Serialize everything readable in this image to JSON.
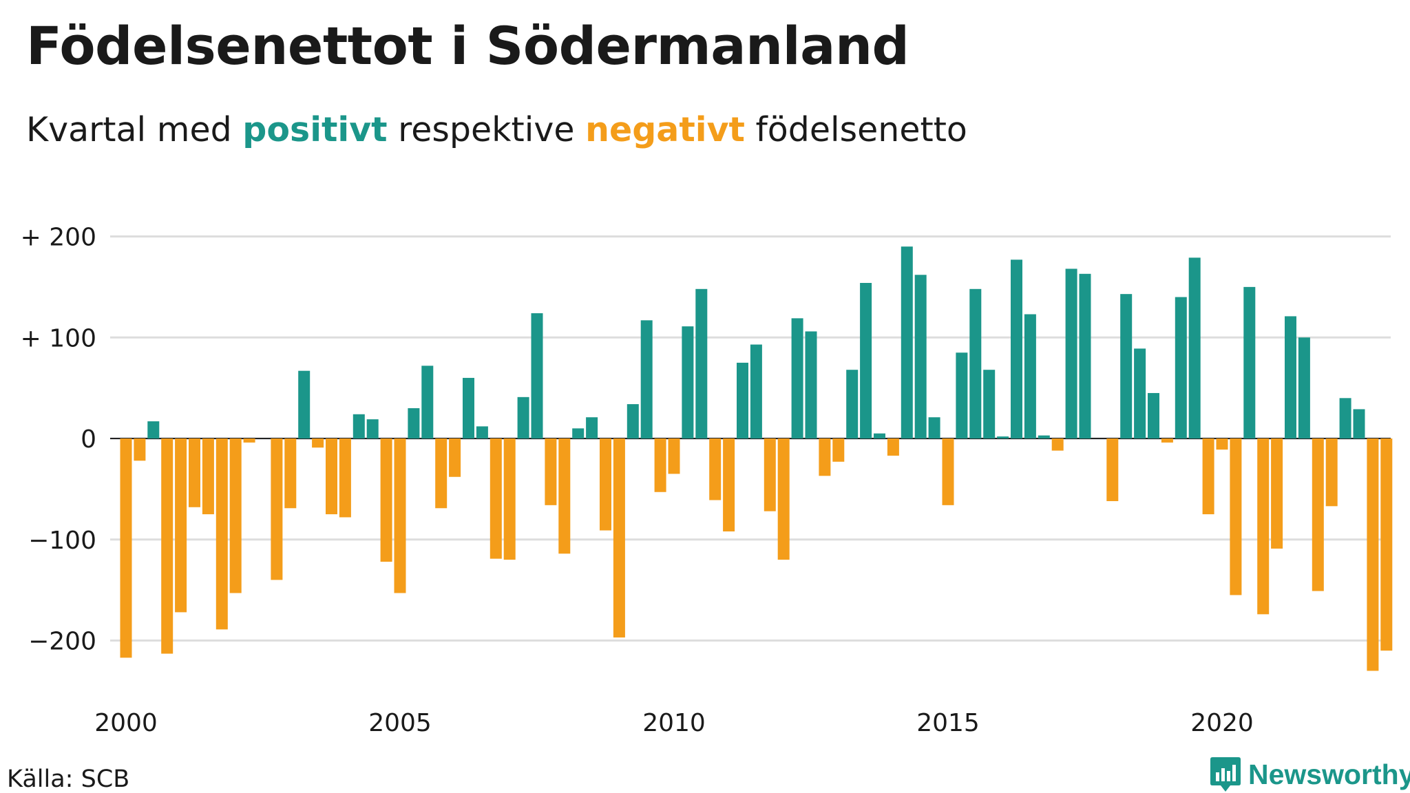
{
  "header": {
    "title": "Födelsenettot i Södermanland",
    "subtitle_prefix": "Kvartal med",
    "subtitle_positive": "positivt",
    "subtitle_middle": "respektive",
    "subtitle_negative": "negativt",
    "subtitle_suffix": "födelsenetto"
  },
  "footer": {
    "source": "Källa: SCB",
    "brand": "Newsworthy"
  },
  "colors": {
    "positive": "#1b968a",
    "negative": "#f49d1a",
    "grid": "#dddddd",
    "text": "#1a1a1a"
  },
  "chart_data": {
    "type": "bar",
    "title": "Födelsenettot i Södermanland",
    "subtitle": "Kvartal med positivt respektive negativt födelsenetto",
    "xlabel": "",
    "ylabel": "",
    "ylim": [
      -235,
      205
    ],
    "y_ticks": [
      {
        "value": 200,
        "label": "+ 200"
      },
      {
        "value": 100,
        "label": "+ 100"
      },
      {
        "value": 0,
        "label": "0"
      },
      {
        "value": -100,
        "label": "−100"
      },
      {
        "value": -200,
        "label": "−200"
      }
    ],
    "x_ticks": [
      {
        "value": 2000,
        "label": "2000"
      },
      {
        "value": 2005,
        "label": "2005"
      },
      {
        "value": 2010,
        "label": "2010"
      },
      {
        "value": 2015,
        "label": "2015"
      },
      {
        "value": 2020,
        "label": "2020"
      }
    ],
    "start_year": 2000,
    "grid": true,
    "values": [
      -217,
      -22,
      17,
      -213,
      -172,
      -68,
      -75,
      -189,
      -153,
      -4,
      0,
      -140,
      -69,
      67,
      -9,
      -75,
      -78,
      24,
      19,
      -122,
      -153,
      30,
      72,
      -69,
      -38,
      60,
      12,
      -119,
      -120,
      41,
      124,
      -66,
      -114,
      10,
      21,
      -91,
      -197,
      34,
      117,
      -53,
      -35,
      111,
      148,
      -61,
      -92,
      75,
      93,
      -72,
      -120,
      119,
      106,
      -37,
      -23,
      68,
      154,
      5,
      -17,
      190,
      162,
      21,
      -66,
      85,
      148,
      68,
      2,
      177,
      123,
      3,
      -12,
      168,
      163,
      0,
      -62,
      143,
      89,
      45,
      -4,
      140,
      179,
      -75,
      -11,
      -155,
      150,
      -174,
      -109,
      121,
      100,
      -151,
      -67,
      40,
      29,
      -230,
      -210
    ]
  }
}
